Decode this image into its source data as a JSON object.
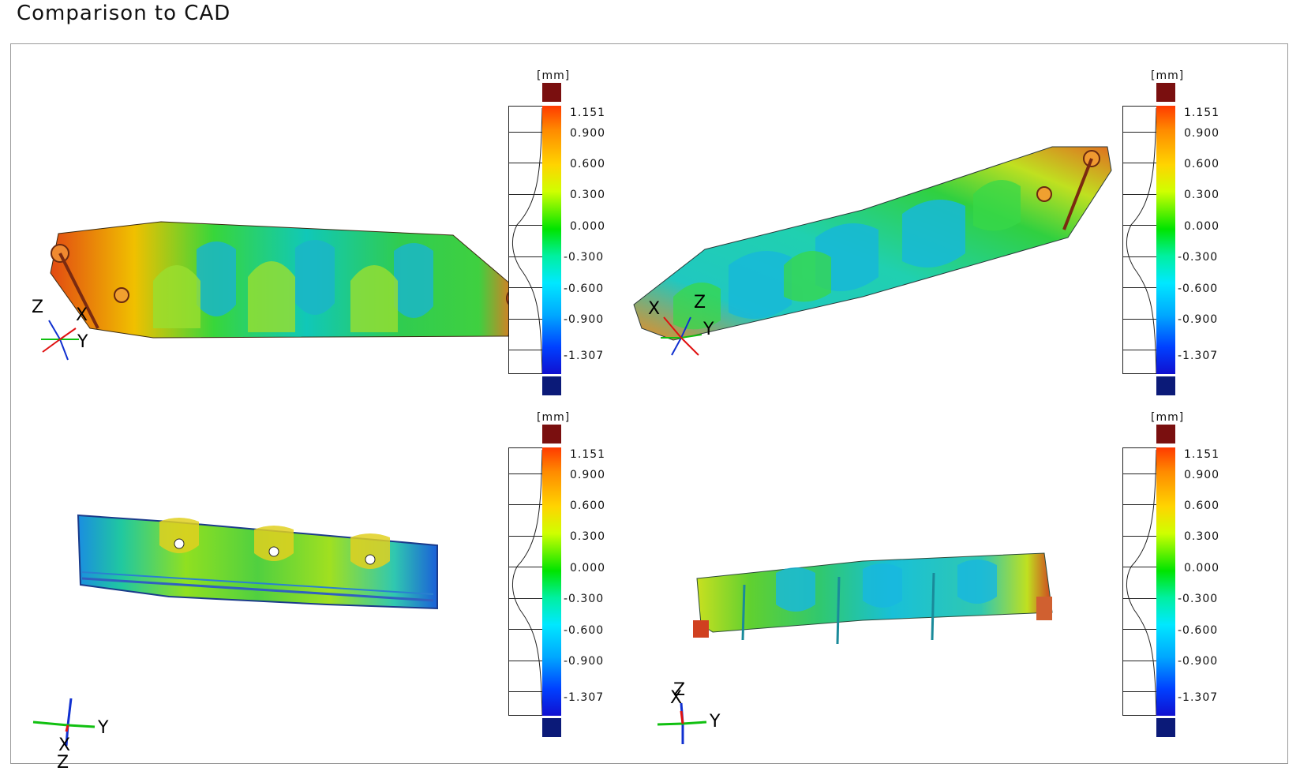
{
  "report": {
    "title": "Comparison to CAD"
  },
  "legend": {
    "unit": "[mm]",
    "ticks": [
      "1.151",
      "0.900",
      "0.600",
      "0.300",
      "0.000",
      "-0.300",
      "-0.600",
      "-0.900",
      "-1.307"
    ],
    "colors": {
      "above_max": "#7a0f0f",
      "below_min": "#0b1a78"
    }
  },
  "views": [
    {
      "id": "view-1",
      "axes": [
        "Z",
        "X",
        "Y"
      ]
    },
    {
      "id": "view-2",
      "axes": [
        "X",
        "Z",
        "Y"
      ]
    },
    {
      "id": "view-3",
      "axes": [
        "Y",
        "X",
        "Z"
      ]
    },
    {
      "id": "view-4",
      "axes": [
        "Z",
        "X",
        "Y"
      ]
    }
  ]
}
